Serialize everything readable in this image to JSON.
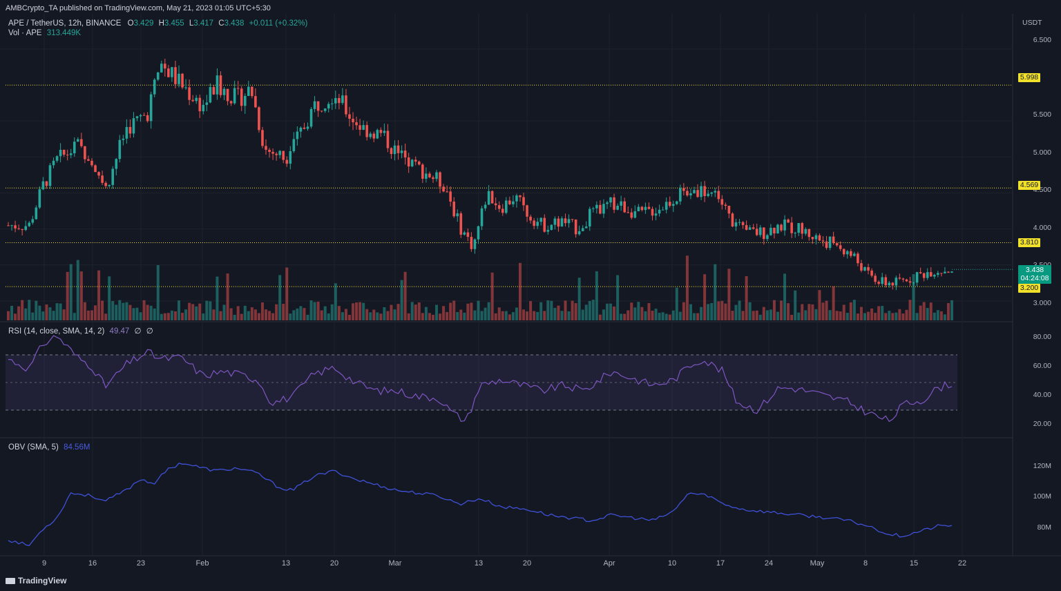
{
  "header": {
    "publisher": "AMBCrypto_TA published on TradingView.com, May 21, 2023 01:05 UTC+5:30",
    "symbol": "APE / TetherUS, 12h, BINANCE",
    "o_label": "O",
    "o_value": "3.429",
    "h_label": "H",
    "h_value": "3.455",
    "l_label": "L",
    "l_value": "3.417",
    "c_label": "C",
    "c_value": "3.438",
    "change": "+0.011 (+0.32%)",
    "vol_label": "Vol · APE",
    "vol_value": "313.449K",
    "currency": "USDT"
  },
  "rsi_header": {
    "label": "RSI (14, close, SMA, 14, 2)",
    "value": "49.47",
    "extra1": "∅",
    "extra2": "∅"
  },
  "obv_header": {
    "label": "OBV (SMA, 5)",
    "value": "84.56M"
  },
  "footer": {
    "brand": "TradingView"
  },
  "colors": {
    "up": "#26a69a",
    "down": "#ef5350",
    "rsi": "#7e57c2",
    "obv": "#3f51d8",
    "level": "#f2e12b",
    "bg": "#141823"
  },
  "chart_data": [
    {
      "type": "candlestick",
      "title": "APE / TetherUS, 12h, BINANCE",
      "x_ticks": [
        "9",
        "16",
        "23",
        "Feb",
        "13",
        "20",
        "Mar",
        "13",
        "20",
        "Apr",
        "10",
        "17",
        "24",
        "May",
        "8",
        "15",
        "22"
      ],
      "y_ticks": [
        "6.500",
        "5.500",
        "5.000",
        "4.500",
        "4.000",
        "3.500",
        "3.000"
      ],
      "ylim": [
        2.75,
        6.7
      ],
      "horizontal_levels": [
        {
          "value": 5.998,
          "label": "5.998"
        },
        {
          "value": 4.569,
          "label": "4.569"
        },
        {
          "value": 3.81,
          "label": "3.810"
        },
        {
          "value": 3.2,
          "label": "3.200"
        }
      ],
      "last_price": {
        "value": 3.438,
        "label": "3.438",
        "countdown": "04:24:08"
      },
      "close_path": [
        [
          "Jan 4",
          4.05
        ],
        [
          "Jan 7",
          4.05
        ],
        [
          "Jan 9",
          4.6
        ],
        [
          "Jan 11",
          4.95
        ],
        [
          "Jan 14",
          5.15
        ],
        [
          "Jan 16",
          5.0
        ],
        [
          "Jan 18",
          4.55
        ],
        [
          "Jan 21",
          5.4
        ],
        [
          "Jan 24",
          5.6
        ],
        [
          "Jan 26",
          6.3
        ],
        [
          "Jan 29",
          6.0
        ],
        [
          "Feb 1",
          5.7
        ],
        [
          "Feb 3",
          6.0
        ],
        [
          "Feb 6",
          5.8
        ],
        [
          "Feb 8",
          5.95
        ],
        [
          "Feb 10",
          5.1
        ],
        [
          "Feb 13",
          5.0
        ],
        [
          "Feb 15",
          5.3
        ],
        [
          "Feb 17",
          5.7
        ],
        [
          "Feb 20",
          5.9
        ],
        [
          "Feb 22",
          5.6
        ],
        [
          "Feb 24",
          5.4
        ],
        [
          "Feb 27",
          5.3
        ],
        [
          "Mar 1",
          5.05
        ],
        [
          "Mar 3",
          4.9
        ],
        [
          "Mar 5",
          4.8
        ],
        [
          "Mar 8",
          4.6
        ],
        [
          "Mar 10",
          4.05
        ],
        [
          "Mar 12",
          3.75
        ],
        [
          "Mar 14",
          4.5
        ],
        [
          "Mar 16",
          4.3
        ],
        [
          "Mar 18",
          4.45
        ],
        [
          "Mar 20",
          4.2
        ],
        [
          "Mar 22",
          4.05
        ],
        [
          "Mar 25",
          4.1
        ],
        [
          "Mar 27",
          4.0
        ],
        [
          "Mar 29",
          4.2
        ],
        [
          "Apr 1",
          4.35
        ],
        [
          "Apr 3",
          4.3
        ],
        [
          "Apr 5",
          4.2
        ],
        [
          "Apr 8",
          4.3
        ],
        [
          "Apr 11",
          4.5
        ],
        [
          "Apr 13",
          4.55
        ],
        [
          "Apr 16",
          4.5
        ],
        [
          "Apr 18",
          4.15
        ],
        [
          "Apr 20",
          3.95
        ],
        [
          "Apr 23",
          3.95
        ],
        [
          "Apr 25",
          4.05
        ],
        [
          "Apr 28",
          4.0
        ],
        [
          "May 1",
          3.85
        ],
        [
          "May 3",
          3.8
        ],
        [
          "May 6",
          3.6
        ],
        [
          "May 8",
          3.35
        ],
        [
          "May 10",
          3.25
        ],
        [
          "May 12",
          3.25
        ],
        [
          "May 15",
          3.35
        ],
        [
          "May 17",
          3.42
        ],
        [
          "May 20",
          3.438
        ]
      ]
    },
    {
      "type": "line",
      "title": "RSI (14, close, SMA, 14, 2)",
      "y_ticks": [
        "80.00",
        "60.00",
        "40.00",
        "20.00"
      ],
      "ylim": [
        12,
        86
      ],
      "band": [
        30,
        70
      ],
      "midline": 50,
      "series": [
        {
          "name": "RSI (14, close, SMA, 14, 2)",
          "values": [
            [
              "Jan 4",
              67
            ],
            [
              "Jan 7",
              60
            ],
            [
              "Jan 9",
              78
            ],
            [
              "Jan 11",
              84
            ],
            [
              "Jan 14",
              68
            ],
            [
              "Jan 16",
              62
            ],
            [
              "Jan 18",
              47
            ],
            [
              "Jan 21",
              63
            ],
            [
              "Jan 24",
              72
            ],
            [
              "Jan 26",
              67
            ],
            [
              "Jan 29",
              68
            ],
            [
              "Feb 1",
              55
            ],
            [
              "Feb 4",
              58
            ],
            [
              "Feb 7",
              55
            ],
            [
              "Feb 9",
              52
            ],
            [
              "Feb 11",
              35
            ],
            [
              "Feb 14",
              40
            ],
            [
              "Feb 17",
              56
            ],
            [
              "Feb 20",
              61
            ],
            [
              "Feb 23",
              50
            ],
            [
              "Feb 26",
              44
            ],
            [
              "Mar 1",
              44
            ],
            [
              "Mar 4",
              40
            ],
            [
              "Mar 7",
              39
            ],
            [
              "Mar 9",
              28
            ],
            [
              "Mar 11",
              22
            ],
            [
              "Mar 13",
              48
            ],
            [
              "Mar 16",
              52
            ],
            [
              "Mar 19",
              48
            ],
            [
              "Mar 22",
              44
            ],
            [
              "Mar 25",
              48
            ],
            [
              "Mar 28",
              44
            ],
            [
              "Apr 1",
              58
            ],
            [
              "Apr 4",
              53
            ],
            [
              "Apr 7",
              48
            ],
            [
              "Apr 10",
              52
            ],
            [
              "Apr 12",
              62
            ],
            [
              "Apr 14",
              67
            ],
            [
              "Apr 17",
              58
            ],
            [
              "Apr 19",
              36
            ],
            [
              "Apr 22",
              30
            ],
            [
              "Apr 25",
              46
            ],
            [
              "Apr 27",
              46
            ],
            [
              "Apr 29",
              44
            ],
            [
              "May 2",
              40
            ],
            [
              "May 5",
              36
            ],
            [
              "May 8",
              28
            ],
            [
              "May 11",
              22
            ],
            [
              "May 13",
              34
            ],
            [
              "May 16",
              38
            ],
            [
              "May 18",
              46
            ],
            [
              "May 20",
              49.47
            ]
          ]
        }
      ]
    },
    {
      "type": "line",
      "title": "OBV (SMA, 5)",
      "y_ticks": [
        "120M",
        "100M",
        "80M"
      ],
      "ylim": [
        65,
        140
      ],
      "series": [
        {
          "name": "OBV (SMA, 5)",
          "values": [
            [
              "Jan 4",
              74
            ],
            [
              "Jan 7",
              70
            ],
            [
              "Jan 9",
              82
            ],
            [
              "Jan 11",
              90
            ],
            [
              "Jan 13",
              108
            ],
            [
              "Jan 16",
              106
            ],
            [
              "Jan 18",
              102
            ],
            [
              "Jan 21",
              110
            ],
            [
              "Jan 23",
              118
            ],
            [
              "Jan 25",
              115
            ],
            [
              "Jan 27",
              125
            ],
            [
              "Jan 29",
              130
            ],
            [
              "Feb 1",
              126
            ],
            [
              "Feb 3",
              124
            ],
            [
              "Feb 6",
              126
            ],
            [
              "Feb 9",
              122
            ],
            [
              "Feb 12",
              112
            ],
            [
              "Feb 14",
              110
            ],
            [
              "Feb 17",
              120
            ],
            [
              "Feb 20",
              124
            ],
            [
              "Feb 23",
              118
            ],
            [
              "Feb 26",
              114
            ],
            [
              "Mar 1",
              110
            ],
            [
              "Mar 4",
              108
            ],
            [
              "Mar 7",
              106
            ],
            [
              "Mar 10",
              100
            ],
            [
              "Mar 13",
              104
            ],
            [
              "Mar 16",
              98
            ],
            [
              "Mar 20",
              96
            ],
            [
              "Mar 23",
              92
            ],
            [
              "Mar 26",
              90
            ],
            [
              "Mar 29",
              88
            ],
            [
              "Apr 1",
              92
            ],
            [
              "Apr 4",
              90
            ],
            [
              "Apr 7",
              88
            ],
            [
              "Apr 10",
              95
            ],
            [
              "Apr 12",
              108
            ],
            [
              "Apr 15",
              106
            ],
            [
              "Apr 17",
              100
            ],
            [
              "Apr 20",
              96
            ],
            [
              "Apr 24",
              94
            ],
            [
              "Apr 28",
              92
            ],
            [
              "May 2",
              90
            ],
            [
              "May 5",
              88
            ],
            [
              "May 8",
              84
            ],
            [
              "May 11",
              78
            ],
            [
              "May 13",
              77
            ],
            [
              "May 16",
              81
            ],
            [
              "May 18",
              84
            ],
            [
              "May 20",
              84.56
            ]
          ]
        }
      ]
    }
  ]
}
